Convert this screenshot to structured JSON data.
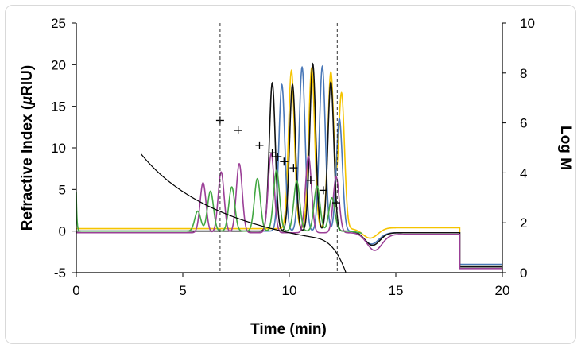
{
  "chart_data": {
    "type": "line",
    "xlabel": "Time (min)",
    "ylabel": "Refractive Index (µRIU)",
    "ylabel_parts": [
      "Refractive Index (",
      "µ",
      "RIU)"
    ],
    "y2label": "Log M",
    "xlim": [
      0,
      20
    ],
    "ylim": [
      -5,
      25
    ],
    "y2lim": [
      0,
      10
    ],
    "xticks": [
      0,
      5,
      10,
      15,
      20
    ],
    "yticks": [
      -5,
      0,
      5,
      10,
      15,
      20,
      25
    ],
    "y2ticks": [
      0,
      2,
      4,
      6,
      8,
      10
    ],
    "grid": false,
    "legend": "none",
    "vlines": [
      6.75,
      12.25
    ],
    "calibration_points": [
      {
        "x": 6.75,
        "y": 6.1
      },
      {
        "x": 7.6,
        "y": 5.7
      },
      {
        "x": 8.6,
        "y": 5.1
      },
      {
        "x": 9.2,
        "y": 4.8
      },
      {
        "x": 9.45,
        "y": 4.65
      },
      {
        "x": 9.75,
        "y": 4.45
      },
      {
        "x": 10.2,
        "y": 4.2
      },
      {
        "x": 11.0,
        "y": 3.7
      },
      {
        "x": 11.6,
        "y": 3.3
      },
      {
        "x": 12.2,
        "y": 2.8
      }
    ],
    "series": [
      {
        "color": "#f5c400",
        "baseline": 0.3,
        "endlevel": 0.4,
        "tail": -4.2,
        "spike": 0.0,
        "dip": [
          13.8,
          1.2
        ],
        "peaks": [
          [
            10.1,
            19.0
          ],
          [
            11.05,
            19.3
          ],
          [
            11.95,
            18.8
          ],
          [
            12.45,
            16.3
          ]
        ]
      },
      {
        "color": "#4a78b8",
        "baseline": 0.0,
        "endlevel": -0.2,
        "tail": -4.0,
        "spike": 0.0,
        "dip": [
          13.85,
          1.45
        ],
        "peaks": [
          [
            9.65,
            17.6
          ],
          [
            10.6,
            19.7
          ],
          [
            11.55,
            19.8
          ],
          [
            12.35,
            13.5
          ]
        ]
      },
      {
        "color": "#111111",
        "baseline": 0.0,
        "endlevel": -0.2,
        "tail": -4.3,
        "spike": 0.0,
        "dip": [
          13.9,
          1.6
        ],
        "peaks": [
          [
            9.2,
            17.8
          ],
          [
            10.15,
            17.6
          ],
          [
            11.1,
            20.1
          ],
          [
            11.95,
            17.9
          ]
        ]
      },
      {
        "color": "#9b3f97",
        "baseline": -0.2,
        "endlevel": -0.4,
        "tail": -4.5,
        "spike": 0.0,
        "dip": [
          14.0,
          2.0
        ],
        "peaks": [
          [
            5.95,
            6.0
          ],
          [
            6.8,
            7.3
          ],
          [
            7.65,
            8.3
          ],
          [
            9.15,
            9.5
          ],
          [
            10.9,
            9.2
          ],
          [
            12.2,
            6.7
          ]
        ]
      },
      {
        "color": "#43a843",
        "baseline": 0.0,
        "endlevel": 0.0,
        "tail": 0.0,
        "spike": 4.7,
        "dip": [
          13.6,
          0.3
        ],
        "endat": 13.4,
        "peaks": [
          [
            5.7,
            2.4
          ],
          [
            6.3,
            4.8
          ],
          [
            7.3,
            5.3
          ],
          [
            8.5,
            6.3
          ],
          [
            9.4,
            7.3
          ],
          [
            10.35,
            6.0
          ],
          [
            11.3,
            5.4
          ],
          [
            12.0,
            4.0
          ]
        ]
      }
    ]
  }
}
